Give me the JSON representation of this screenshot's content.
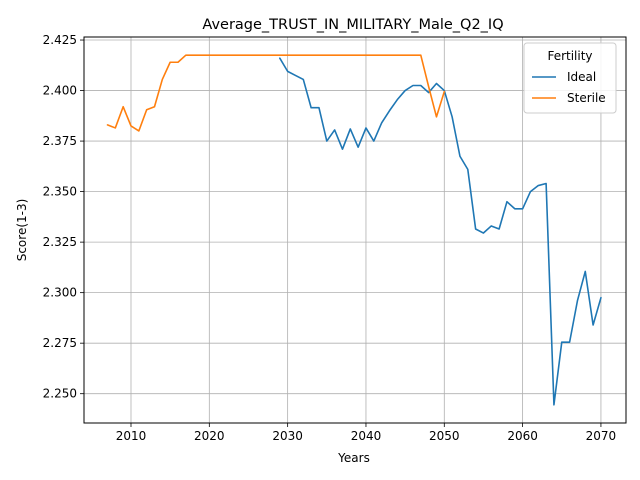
{
  "chart_data": {
    "type": "line",
    "title": "Average_TRUST_IN_MILITARY_Male_Q2_IQ",
    "xlabel": "Years",
    "ylabel": "Score(1-3)",
    "xlim": [
      2004,
      2073.2
    ],
    "ylim": [
      2.2355,
      2.4265
    ],
    "x_ticks": [
      2010,
      2020,
      2030,
      2040,
      2050,
      2060,
      2070
    ],
    "y_ticks": [
      2.25,
      2.275,
      2.3,
      2.325,
      2.35,
      2.375,
      2.4,
      2.425
    ],
    "x_tick_labels": [
      "2010",
      "2020",
      "2030",
      "2040",
      "2050",
      "2060",
      "2070"
    ],
    "y_tick_labels": [
      "2.250",
      "2.275",
      "2.300",
      "2.325",
      "2.350",
      "2.375",
      "2.400",
      "2.425"
    ],
    "grid": true,
    "legend": {
      "title": "Fertility",
      "placement": "top-right"
    },
    "series": [
      {
        "name": "Ideal",
        "color": "#1f77b4",
        "x": [
          2029,
          2030,
          2031,
          2032,
          2033,
          2034,
          2035,
          2036,
          2037,
          2038,
          2039,
          2040,
          2041,
          2042,
          2043,
          2044,
          2045,
          2046,
          2047,
          2048,
          2049,
          2050,
          2051,
          2052,
          2053,
          2054,
          2055,
          2056,
          2057,
          2058,
          2059,
          2060,
          2061,
          2062,
          2063,
          2064,
          2065,
          2066,
          2067,
          2068,
          2069,
          2070
        ],
        "y": [
          2.416,
          2.4095,
          2.4075,
          2.4055,
          2.3915,
          2.3915,
          2.375,
          2.3805,
          2.371,
          2.381,
          2.372,
          2.3815,
          2.375,
          2.384,
          2.39,
          2.3955,
          2.4,
          2.4025,
          2.4025,
          2.399,
          2.4035,
          2.4,
          2.387,
          2.3675,
          2.361,
          2.3315,
          2.3295,
          2.333,
          2.3315,
          2.345,
          2.3415,
          2.3415,
          2.35,
          2.353,
          2.354,
          2.2445,
          2.2755,
          2.2755,
          2.296,
          2.3105,
          2.284,
          2.2975
        ]
      },
      {
        "name": "Sterile",
        "color": "#ff7f0e",
        "x": [
          2007,
          2008,
          2009,
          2010,
          2011,
          2012,
          2013,
          2014,
          2015,
          2016,
          2017,
          2018,
          2019,
          2020,
          2021,
          2022,
          2023,
          2024,
          2025,
          2026,
          2027,
          2028,
          2029,
          2030,
          2031,
          2032,
          2033,
          2034,
          2035,
          2036,
          2037,
          2038,
          2039,
          2040,
          2041,
          2042,
          2043,
          2044,
          2045,
          2046,
          2047,
          2048,
          2049,
          2050
        ],
        "y": [
          2.383,
          2.3815,
          2.392,
          2.3825,
          2.38,
          2.3905,
          2.392,
          2.4055,
          2.414,
          2.414,
          2.4175,
          2.4175,
          2.4175,
          2.4175,
          2.4175,
          2.4175,
          2.4175,
          2.4175,
          2.4175,
          2.4175,
          2.4175,
          2.4175,
          2.4175,
          2.4175,
          2.4175,
          2.4175,
          2.4175,
          2.4175,
          2.4175,
          2.4175,
          2.4175,
          2.4175,
          2.4175,
          2.4175,
          2.4175,
          2.4175,
          2.4175,
          2.4175,
          2.4175,
          2.4175,
          2.4175,
          2.402,
          2.387,
          2.3995
        ]
      }
    ]
  }
}
